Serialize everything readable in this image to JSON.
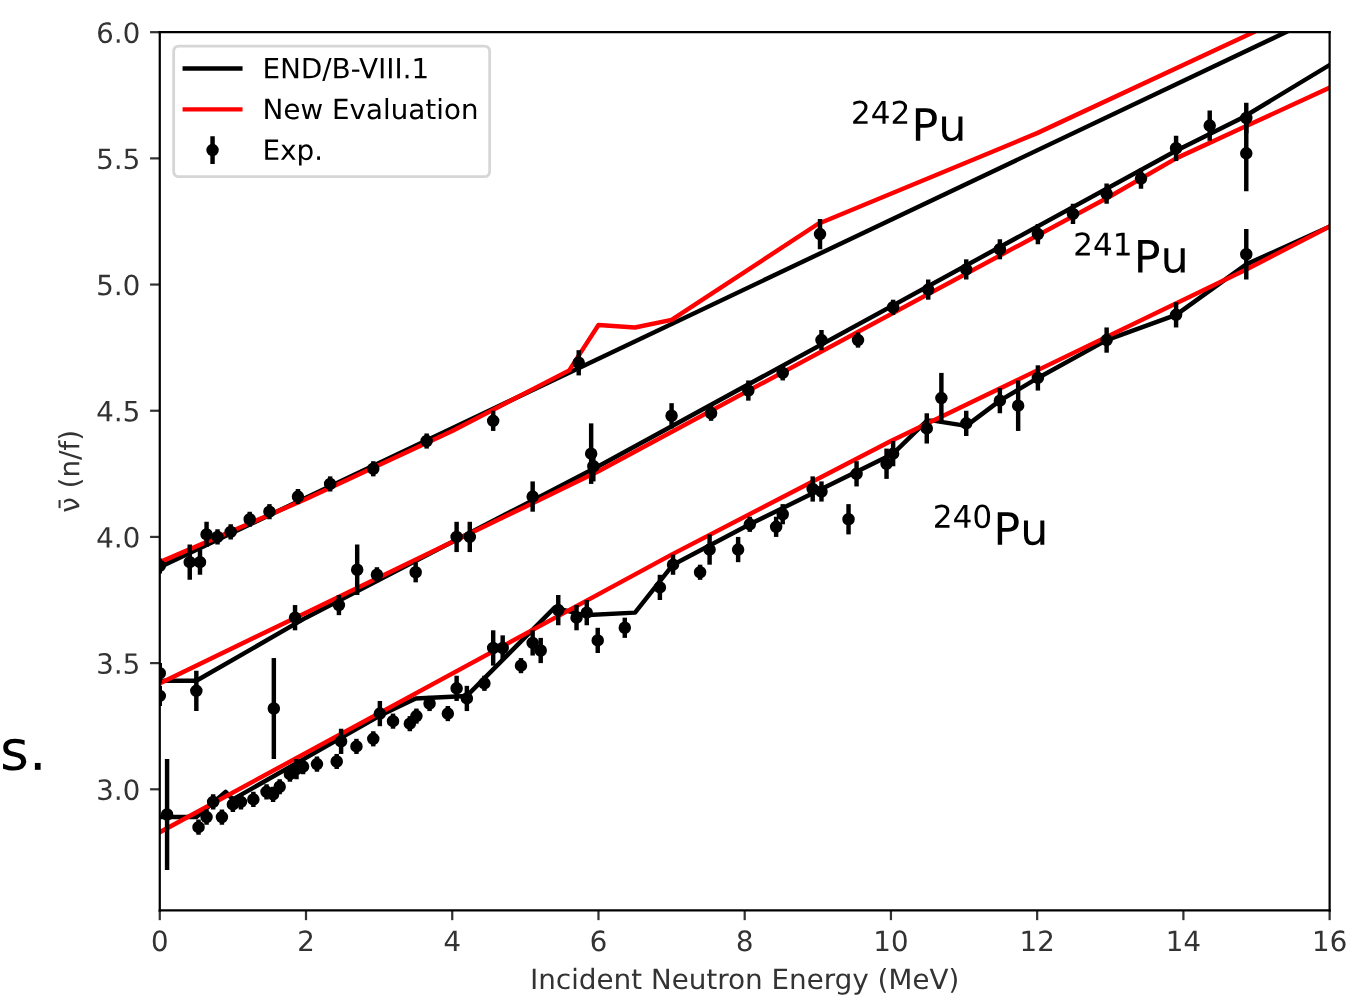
{
  "chart_data": {
    "type": "line",
    "xlabel": "Incident Neutron Energy (MeV)",
    "ylabel": "ν̄ (n/f)",
    "xlim": [
      0,
      16
    ],
    "ylim": [
      2.52,
      6.0
    ],
    "xticks": [
      0,
      2,
      4,
      6,
      8,
      10,
      12,
      14,
      16
    ],
    "yticks": [
      {
        "value": 3.0,
        "label": "3.0"
      },
      {
        "value": 3.5,
        "label": "3.5"
      },
      {
        "value": 4.0,
        "label": "4.0"
      },
      {
        "value": 4.5,
        "label": "4.5"
      },
      {
        "value": 5.0,
        "label": "5.0"
      },
      {
        "value": 5.5,
        "label": "5.5"
      },
      {
        "value": 6.0,
        "label": "6.0"
      }
    ],
    "grid": false,
    "legend": "top left",
    "annotations": [
      "$^{242}$Pu",
      "$^{241}$Pu",
      "$^{240}$Pu",
      "s."
    ],
    "series": [
      {
        "name": "END/B-VIII.1",
        "color": "#000000",
        "x": [
          0,
          15.4
        ],
        "values": [
          3.88,
          6.0
        ]
      },
      {
        "color": "#000000",
        "x": [
          0,
          0.5,
          2,
          5,
          6,
          13.9,
          14.8,
          16
        ],
        "values": [
          3.43,
          3.43,
          3.68,
          4.13,
          4.28,
          5.53,
          5.66,
          5.87
        ]
      },
      {
        "color": "#000000",
        "x": [
          0,
          0.5,
          0.9,
          1.0,
          3,
          3.5,
          4.2,
          5.4,
          5.8,
          6.5,
          7.02,
          8.07,
          8.98,
          10.03,
          10.49,
          10.6,
          11.03,
          11.49,
          12.01,
          12.95,
          13.9,
          14.86,
          16
        ],
        "values": [
          2.89,
          2.89,
          2.99,
          2.96,
          3.29,
          3.36,
          3.37,
          3.72,
          3.69,
          3.7,
          3.89,
          4.05,
          4.18,
          4.33,
          4.46,
          4.46,
          4.44,
          4.54,
          4.63,
          4.78,
          4.88,
          5.08,
          5.23
        ]
      },
      {
        "name": "New Evaluation",
        "color": "#ff0000",
        "x": [
          0,
          2,
          4,
          5.6,
          5.8,
          6,
          6.5,
          7,
          9,
          12,
          14.96
        ],
        "values": [
          3.9,
          4.15,
          4.42,
          4.66,
          4.75,
          4.84,
          4.83,
          4.86,
          5.24,
          5.6,
          6.0
        ]
      },
      {
        "color": "#ff0000",
        "x": [
          0,
          2,
          5,
          6,
          13,
          13.9,
          14.8,
          16
        ],
        "values": [
          3.42,
          3.7,
          4.12,
          4.26,
          5.35,
          5.5,
          5.62,
          5.78
        ]
      },
      {
        "color": "#ff0000",
        "x": [
          0,
          7,
          10,
          14.86,
          16
        ],
        "values": [
          2.83,
          3.93,
          4.38,
          5.06,
          5.23
        ]
      },
      {
        "name": "Exp.",
        "type": "scatter",
        "color": "#000000",
        "x": [
          0,
          0.41,
          0.55,
          0.64,
          0.79,
          0.97,
          1.23,
          1.5,
          1.89,
          2.33,
          2.92,
          3.65,
          4.56,
          5.73,
          9.03
        ],
        "values": [
          3.885,
          3.9,
          3.9,
          4.01,
          4.0,
          4.02,
          4.07,
          4.1,
          4.16,
          4.21,
          4.27,
          4.38,
          4.46,
          4.69,
          5.2
        ],
        "errors": [
          0.03,
          0.07,
          0.05,
          0.05,
          0.03,
          0.03,
          0.03,
          0.03,
          0.03,
          0.03,
          0.03,
          0.03,
          0.04,
          0.05,
          0.06
        ]
      },
      {
        "type": "scatter",
        "color": "#000000",
        "x": [
          0,
          0,
          0.5,
          1.56,
          1.85,
          2.45,
          2.7,
          2.97,
          3.5,
          4.06,
          4.24,
          5.1,
          5.9,
          5.93,
          7.0,
          7.54,
          8.05,
          8.52,
          9.05,
          9.55,
          10.03,
          10.51,
          11.03,
          11.49,
          12.01,
          12.49,
          12.95,
          13.42,
          13.9,
          14.36,
          14.86,
          14.86
        ],
        "values": [
          3.46,
          3.37,
          3.39,
          3.32,
          3.68,
          3.73,
          3.87,
          3.85,
          3.86,
          4.0,
          4.0,
          4.16,
          4.33,
          4.28,
          4.48,
          4.49,
          4.58,
          4.65,
          4.78,
          4.78,
          4.91,
          4.98,
          5.06,
          5.14,
          5.2,
          5.28,
          5.36,
          5.42,
          5.54,
          5.63,
          5.66,
          5.52
        ],
        "errors": [
          0.04,
          0.04,
          0.08,
          0.2,
          0.05,
          0.04,
          0.1,
          0.03,
          0.04,
          0.06,
          0.06,
          0.06,
          0.12,
          0.06,
          0.05,
          0.03,
          0.04,
          0.03,
          0.04,
          0.03,
          0.03,
          0.04,
          0.04,
          0.04,
          0.04,
          0.04,
          0.04,
          0.04,
          0.05,
          0.06,
          0.06,
          0.15
        ]
      },
      {
        "type": "scatter",
        "color": "#000000",
        "x": [
          0.1,
          0.53,
          0.64,
          0.73,
          0.85,
          1.0,
          1.11,
          1.28,
          1.46,
          1.55,
          1.64,
          1.78,
          1.87,
          1.96,
          2.15,
          2.42,
          2.48,
          2.69,
          2.92,
          3.01,
          3.19,
          3.42,
          3.51,
          3.69,
          3.94,
          4.06,
          4.2,
          4.44,
          4.56,
          4.69,
          4.94,
          5.1,
          5.21,
          5.45,
          5.7,
          5.84,
          5.99,
          6.36,
          6.84,
          7.02,
          7.39,
          7.52,
          7.91,
          8.07,
          8.43,
          8.52,
          8.93,
          9.05,
          9.42,
          9.53,
          9.94,
          10.03,
          10.49,
          10.69,
          11.03,
          11.49,
          11.74,
          12.01,
          12.95,
          13.9,
          14.86
        ],
        "values": [
          2.9,
          2.85,
          2.89,
          2.95,
          2.89,
          2.94,
          2.95,
          2.96,
          2.99,
          2.98,
          3.01,
          3.06,
          3.08,
          3.09,
          3.1,
          3.11,
          3.19,
          3.17,
          3.2,
          3.3,
          3.27,
          3.26,
          3.29,
          3.34,
          3.3,
          3.4,
          3.36,
          3.42,
          3.56,
          3.56,
          3.49,
          3.58,
          3.55,
          3.71,
          3.68,
          3.7,
          3.59,
          3.64,
          3.8,
          3.89,
          3.86,
          3.95,
          3.95,
          4.05,
          4.04,
          4.09,
          4.19,
          4.18,
          4.07,
          4.25,
          4.29,
          4.33,
          4.43,
          4.55,
          4.45,
          4.54,
          4.52,
          4.63,
          4.78,
          4.88,
          5.12
        ],
        "errors": [
          0.22,
          0.03,
          0.03,
          0.03,
          0.03,
          0.03,
          0.03,
          0.03,
          0.03,
          0.03,
          0.03,
          0.03,
          0.04,
          0.03,
          0.03,
          0.03,
          0.05,
          0.03,
          0.03,
          0.05,
          0.03,
          0.03,
          0.03,
          0.03,
          0.03,
          0.05,
          0.05,
          0.03,
          0.07,
          0.05,
          0.03,
          0.05,
          0.05,
          0.06,
          0.05,
          0.05,
          0.05,
          0.04,
          0.05,
          0.04,
          0.03,
          0.06,
          0.05,
          0.03,
          0.04,
          0.04,
          0.05,
          0.04,
          0.06,
          0.05,
          0.06,
          0.05,
          0.06,
          0.1,
          0.05,
          0.05,
          0.1,
          0.05,
          0.05,
          0.05,
          0.1
        ]
      }
    ]
  }
}
